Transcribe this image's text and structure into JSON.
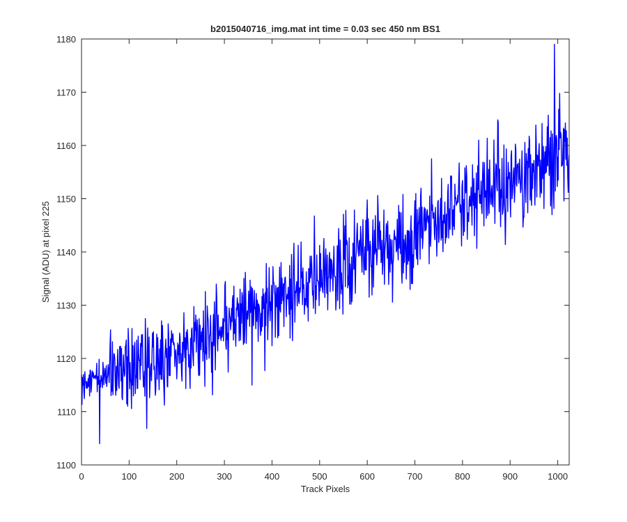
{
  "chart_data": {
    "type": "line",
    "title": "b2015040716_img.mat int time = 0.03 sec  450 nm BS1",
    "xlabel": "Track Pixels",
    "ylabel": "Signal (ADU) at pixel 225",
    "xlim": [
      0,
      1024
    ],
    "ylim": [
      1100,
      1180
    ],
    "xticks": [
      0,
      100,
      200,
      300,
      400,
      500,
      600,
      700,
      800,
      900,
      1000
    ],
    "yticks": [
      1100,
      1110,
      1120,
      1130,
      1140,
      1150,
      1160,
      1170,
      1180
    ],
    "grid": false,
    "line_color": "#0000ff",
    "trend": {
      "description": "noisy signal rising roughly linearly from about 1115 at x=0 to about 1159 at x=1024",
      "knots_x": [
        0,
        100,
        200,
        300,
        400,
        500,
        600,
        700,
        800,
        900,
        1000,
        1024
      ],
      "knots_y": [
        1115,
        1118.5,
        1122,
        1126,
        1130.5,
        1135,
        1139.5,
        1144,
        1149,
        1154,
        1158,
        1159
      ],
      "noise_std": 4.2,
      "noise_std_first_60": 2.0
    },
    "notable_points": [
      {
        "x": 38,
        "y": 1104
      },
      {
        "x": 358,
        "y": 1115
      },
      {
        "x": 993,
        "y": 1179
      },
      {
        "x": 988,
        "y": 1147
      }
    ]
  }
}
